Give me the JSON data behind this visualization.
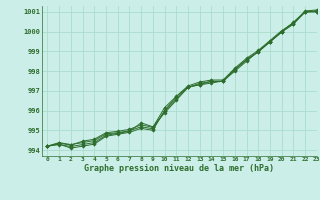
{
  "xlabel": "Graphe pression niveau de la mer (hPa)",
  "background_color": "#cceee8",
  "grid_color": "#aaddcc",
  "line_color": "#2d6e2d",
  "xlim": [
    -0.5,
    23
  ],
  "ylim": [
    993.7,
    1001.3
  ],
  "yticks": [
    994,
    995,
    996,
    997,
    998,
    999,
    1000,
    1001
  ],
  "xticks": [
    0,
    1,
    2,
    3,
    4,
    5,
    6,
    7,
    8,
    9,
    10,
    11,
    12,
    13,
    14,
    15,
    16,
    17,
    18,
    19,
    20,
    21,
    22,
    23
  ],
  "series": [
    [
      994.2,
      994.3,
      994.1,
      994.2,
      994.3,
      994.7,
      994.8,
      994.9,
      995.1,
      995.0,
      996.0,
      996.7,
      997.2,
      997.3,
      997.4,
      997.5,
      998.0,
      998.5,
      999.0,
      999.5,
      1000.0,
      1000.4,
      1001.0,
      1001.05
    ],
    [
      994.2,
      994.35,
      994.25,
      994.45,
      994.55,
      994.88,
      994.95,
      995.05,
      995.28,
      995.15,
      996.15,
      996.72,
      997.25,
      997.45,
      997.55,
      997.55,
      998.15,
      998.65,
      999.05,
      999.55,
      1000.05,
      1000.45,
      1001.05,
      1001.1
    ],
    [
      994.2,
      994.28,
      994.18,
      994.28,
      994.38,
      994.75,
      994.85,
      994.95,
      995.38,
      995.18,
      995.88,
      996.52,
      997.18,
      997.32,
      997.48,
      997.48,
      998.08,
      998.58,
      998.98,
      999.48,
      999.98,
      1000.48,
      1001.0,
      1001.02
    ],
    [
      994.2,
      994.38,
      994.28,
      994.38,
      994.48,
      994.82,
      994.88,
      994.98,
      995.18,
      995.08,
      995.98,
      996.58,
      997.18,
      997.38,
      997.48,
      997.48,
      998.08,
      998.58,
      998.98,
      999.48,
      999.98,
      1000.38,
      1001.0,
      1001.0
    ]
  ]
}
